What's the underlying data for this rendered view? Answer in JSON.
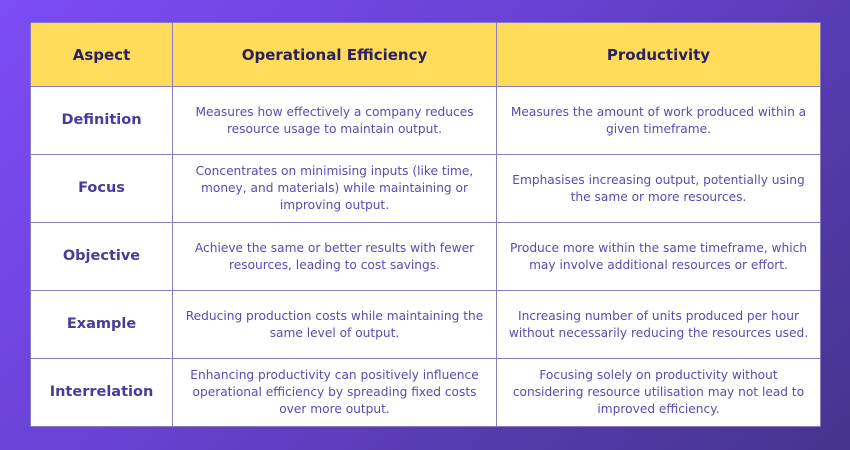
{
  "headers": [
    "Aspect",
    "Operational Efficiency",
    "Productivity"
  ],
  "rows": [
    {
      "aspect": "Definition",
      "efficiency": "Measures how effectively a company reduces resource usage to maintain output.",
      "productivity": "Measures the amount of work produced within a given timeframe."
    },
    {
      "aspect": "Focus",
      "efficiency": "Concentrates on minimising inputs (like time, money, and materials) while maintaining or improving output.",
      "productivity": "Emphasises increasing output, potentially using the same or more resources."
    },
    {
      "aspect": "Objective",
      "efficiency": "Achieve the same or better results with fewer resources, leading to cost savings.",
      "productivity": "Produce more within the same timeframe, which may involve additional resources or effort."
    },
    {
      "aspect": "Example",
      "efficiency": "Reducing production costs while maintaining the same level of output.",
      "productivity": "Increasing number of units produced per hour without necessarily reducing the resources used."
    },
    {
      "aspect": "Interrelation",
      "efficiency": "Enhancing productivity can positively influence operational efficiency by spreading fixed costs over more output.",
      "productivity": "Focusing solely on productivity without considering resource utilisation may not lead to improved efficiency."
    }
  ],
  "colors": {
    "header_bg": "#fedc5a",
    "header_text": "#2b205e",
    "label_text": "#4a3a9c",
    "body_text": "#5a4bb0",
    "border": "#8a7cbc"
  }
}
